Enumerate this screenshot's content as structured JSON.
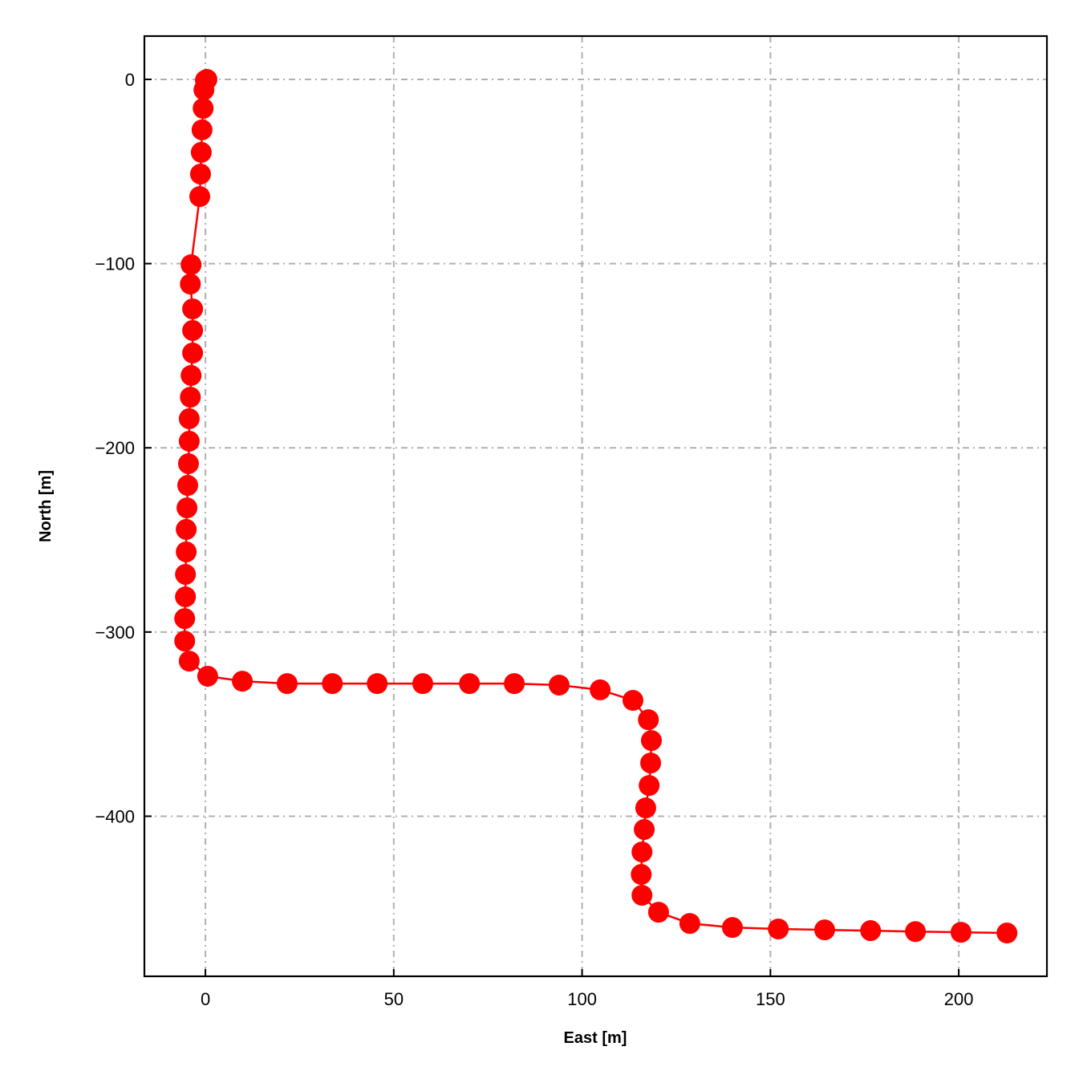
{
  "chart_data": {
    "type": "line",
    "title": "",
    "xlabel": "East [m]",
    "ylabel": "North [m]",
    "xlim": [
      -16.2,
      223.4
    ],
    "ylim": [
      -486.9,
      23.5
    ],
    "xticks": [
      0,
      50,
      100,
      150,
      200
    ],
    "xtick_labels": [
      "0",
      "50",
      "100",
      "150",
      "200"
    ],
    "yticks": [
      0,
      -100,
      -200,
      -300,
      -400
    ],
    "ytick_labels": [
      "0",
      "−100",
      "−200",
      "−300",
      "−400"
    ],
    "grid": true,
    "grid_style": "dash-dot",
    "grid_color": "#b0b0b0",
    "series": [
      {
        "color": "#ff0000",
        "marker": "circle",
        "points": [
          [
            0.4,
            0
          ],
          [
            0.0,
            -0.5
          ],
          [
            -0.4,
            -5.7
          ],
          [
            -0.6,
            -15.7
          ],
          [
            -0.9,
            -27.4
          ],
          [
            -1.1,
            -39.6
          ],
          [
            -1.3,
            -51.4
          ],
          [
            -1.5,
            -63.6
          ],
          [
            -3.8,
            -100.6
          ],
          [
            -4.0,
            -111.1
          ],
          [
            -3.4,
            -124.6
          ],
          [
            -3.4,
            -136.3
          ],
          [
            -3.4,
            -148.5
          ],
          [
            -3.8,
            -160.7
          ],
          [
            -4.0,
            -172.5
          ],
          [
            -4.3,
            -184.2
          ],
          [
            -4.3,
            -196.4
          ],
          [
            -4.5,
            -208.6
          ],
          [
            -4.7,
            -220.4
          ],
          [
            -4.9,
            -232.6
          ],
          [
            -5.1,
            -244.3
          ],
          [
            -5.1,
            -256.5
          ],
          [
            -5.3,
            -268.7
          ],
          [
            -5.3,
            -280.9
          ],
          [
            -5.5,
            -292.7
          ],
          [
            -5.5,
            -304.9
          ],
          [
            -4.3,
            -315.8
          ],
          [
            0.6,
            -324.0
          ],
          [
            9.8,
            -326.7
          ],
          [
            21.7,
            -328.0
          ],
          [
            33.7,
            -328.0
          ],
          [
            45.6,
            -328.0
          ],
          [
            57.7,
            -328.0
          ],
          [
            70.1,
            -328.0
          ],
          [
            82.0,
            -328.0
          ],
          [
            93.9,
            -328.8
          ],
          [
            104.8,
            -331.4
          ],
          [
            113.5,
            -337.1
          ],
          [
            117.6,
            -347.6
          ],
          [
            118.4,
            -358.9
          ],
          [
            118.2,
            -371.1
          ],
          [
            117.8,
            -383.3
          ],
          [
            116.9,
            -395.5
          ],
          [
            116.5,
            -407.2
          ],
          [
            115.9,
            -419.4
          ],
          [
            115.7,
            -431.6
          ],
          [
            115.9,
            -442.9
          ],
          [
            120.3,
            -452.1
          ],
          [
            128.6,
            -458.2
          ],
          [
            139.9,
            -460.4
          ],
          [
            152.1,
            -461.2
          ],
          [
            164.4,
            -461.7
          ],
          [
            176.6,
            -462.1
          ],
          [
            188.5,
            -462.6
          ],
          [
            200.6,
            -463.0
          ],
          [
            212.8,
            -463.4
          ]
        ]
      }
    ]
  }
}
